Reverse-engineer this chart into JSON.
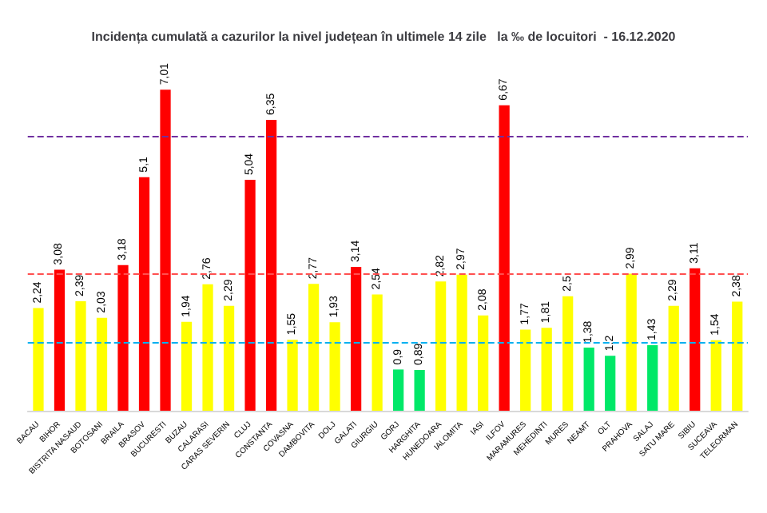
{
  "chart_data": {
    "type": "bar",
    "title": "Incidența cumulată a cazurilor la nivel județean în ultimele 14 zile   la ‰ de locuitori  - 16.12.2020",
    "categories": [
      "BACAU",
      "BIHOR",
      "BISTRITA NASAUD",
      "BOTOSANI",
      "BRAILA",
      "BRASOV",
      "BUCURESTI",
      "BUZAU",
      "CALARASI",
      "CARAS SEVERIN",
      "CLUJ",
      "CONSTANTA",
      "COVASNA",
      "DAMBOVITA",
      "DOLJ",
      "GALATI",
      "GIURGIU",
      "GORJ",
      "HARGHITA",
      "HUNEDOARA",
      "IALOMITA",
      "IASI",
      "ILFOV",
      "MARAMURES",
      "MEHEDINTI",
      "MURES",
      "NEAMT",
      "OLT",
      "PRAHOVA",
      "SALAJ",
      "SATU MARE",
      "SIBIU",
      "SUCEAVA",
      "TELEORMAN"
    ],
    "values": [
      2.24,
      3.08,
      2.39,
      2.03,
      3.18,
      5.1,
      7.01,
      1.94,
      2.76,
      2.29,
      5.04,
      6.35,
      1.55,
      2.77,
      1.93,
      3.14,
      2.54,
      0.9,
      0.89,
      2.82,
      2.97,
      2.08,
      6.67,
      1.77,
      1.81,
      2.5,
      1.38,
      1.2,
      2.99,
      1.43,
      2.29,
      3.11,
      1.54,
      2.38
    ],
    "colors": [
      "#ffff00",
      "#ff0000",
      "#ffff00",
      "#ffff00",
      "#ff0000",
      "#ff0000",
      "#ff0000",
      "#ffff00",
      "#ffff00",
      "#ffff00",
      "#ff0000",
      "#ff0000",
      "#ffff00",
      "#ffff00",
      "#ffff00",
      "#ff0000",
      "#ffff00",
      "#00e868",
      "#00e868",
      "#ffff00",
      "#ffff00",
      "#ffff00",
      "#ff0000",
      "#ffff00",
      "#ffff00",
      "#ffff00",
      "#00e868",
      "#00e868",
      "#ffff00",
      "#00e868",
      "#ffff00",
      "#ff0000",
      "#ffff00",
      "#ffff00"
    ],
    "value_labels": [
      "2,24",
      "3,08",
      "2,39",
      "2,03",
      "3,18",
      "5,1",
      "7,01",
      "1,94",
      "2,76",
      "2,29",
      "5,04",
      "6,35",
      "1,55",
      "2,77",
      "1,93",
      "3,14",
      "2,54",
      "0,9",
      "0,89",
      "2,82",
      "2,97",
      "2,08",
      "6,67",
      "1,77",
      "1,81",
      "2,5",
      "1,38",
      "1,2",
      "2,99",
      "1,43",
      "2,29",
      "3,11",
      "1,54",
      "2,38"
    ],
    "grid": false,
    "tick_labels": "x",
    "ref_lines": [
      {
        "axis": "y",
        "value": 6,
        "color": "#7030a0",
        "line_style": "dashed"
      },
      {
        "axis": "y",
        "value": 3,
        "color": "#ff5050",
        "line_style": "dashed"
      },
      {
        "axis": "y",
        "value": 1.5,
        "color": "#00b0f0",
        "line_style": "dashed"
      }
    ]
  }
}
